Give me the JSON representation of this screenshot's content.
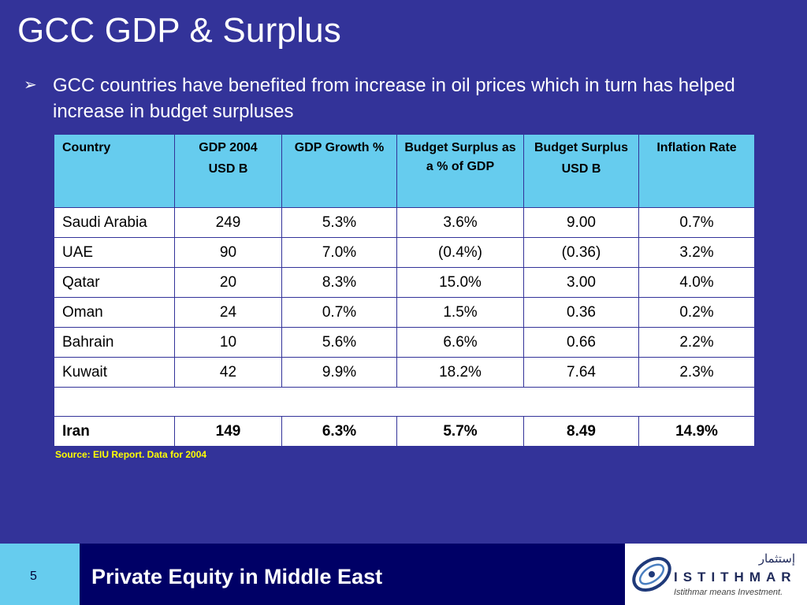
{
  "slide": {
    "title": "GCC GDP & Surplus",
    "bullet_marker": "➢",
    "bullet_text": "GCC countries have benefited from increase in oil prices which in turn has helped increase in budget surpluses"
  },
  "table": {
    "headers": {
      "country": "Country",
      "gdp_label": "GDP 2004",
      "gdp_unit": "USD B",
      "growth": "GDP Growth %",
      "surplus_pct": "Budget Surplus as a % of GDP",
      "surplus_label": "Budget Surplus",
      "surplus_unit": "USD B",
      "inflation": "Inflation Rate"
    },
    "rows": [
      {
        "country": "Saudi Arabia",
        "gdp": "249",
        "growth": "5.3%",
        "surplus_pct": "3.6%",
        "surplus": "9.00",
        "inflation": "0.7%"
      },
      {
        "country": "UAE",
        "gdp": "90",
        "growth": "7.0%",
        "surplus_pct": "(0.4%)",
        "surplus": "(0.36)",
        "inflation": "3.2%"
      },
      {
        "country": "Qatar",
        "gdp": "20",
        "growth": "8.3%",
        "surplus_pct": "15.0%",
        "surplus": "3.00",
        "inflation": "4.0%"
      },
      {
        "country": "Oman",
        "gdp": "24",
        "growth": "0.7%",
        "surplus_pct": "1.5%",
        "surplus": "0.36",
        "inflation": "0.2%"
      },
      {
        "country": "Bahrain",
        "gdp": "10",
        "growth": "5.6%",
        "surplus_pct": "6.6%",
        "surplus": "0.66",
        "inflation": "2.2%"
      },
      {
        "country": "Kuwait",
        "gdp": "42",
        "growth": "9.9%",
        "surplus_pct": "18.2%",
        "surplus": "7.64",
        "inflation": "2.3%"
      }
    ],
    "iran": {
      "country": "Iran",
      "gdp": "149",
      "growth": "6.3%",
      "surplus_pct": "5.7%",
      "surplus": "8.49",
      "inflation": "14.9%"
    }
  },
  "source_note": "Source: EIU Report. Data for 2004",
  "footer": {
    "page_number": "5",
    "title": "Private Equity in Middle East",
    "logo_icon": "istithmar-swirl-logo",
    "logo_arabic": "إستثمار",
    "logo_name": "ISTITHMAR",
    "logo_tagline": "Istithmar means Investment."
  },
  "colors": {
    "background": "#333399",
    "header_fill": "#66ccee",
    "footer_bar": "#000066",
    "source_text": "#ffff00"
  }
}
